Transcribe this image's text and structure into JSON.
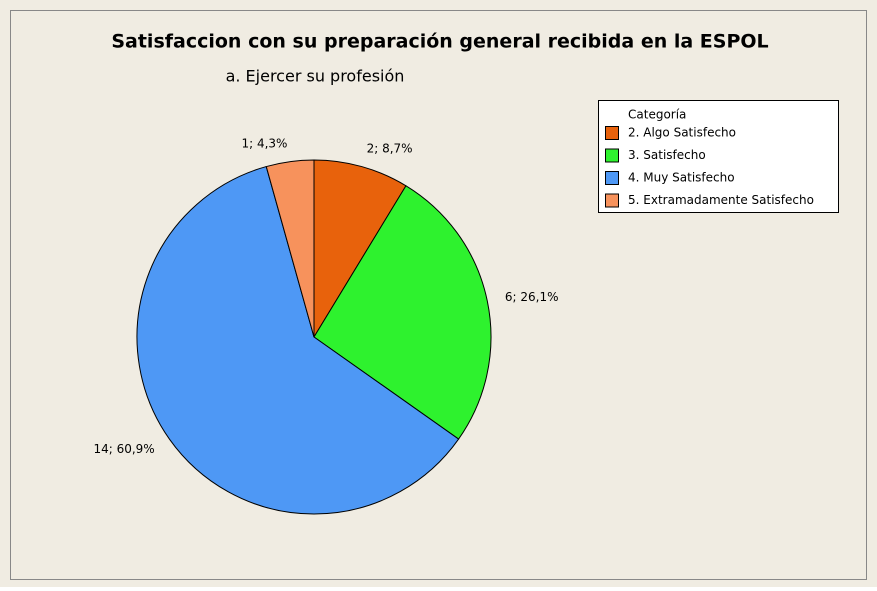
{
  "chart_data": {
    "type": "pie",
    "title": "Satisfaccion con su preparación general recibida en la ESPOL",
    "subtitle": "a. Ejercer su profesión",
    "legend_title": "Categoría",
    "categories": [
      "2. Algo Satisfecho",
      "3. Satisfecho",
      "4. Muy Satisfecho",
      "5. Extramadamente Satisfecho"
    ],
    "values": [
      2,
      6,
      14,
      1
    ],
    "value_labels": [
      "2; 8,7%",
      "6; 26,1%",
      "14; 60,9%",
      "1; 4,3%"
    ],
    "colors": [
      "#e8620c",
      "#2ef22e",
      "#4e98f5",
      "#f7925c"
    ],
    "legend": "upper right"
  }
}
